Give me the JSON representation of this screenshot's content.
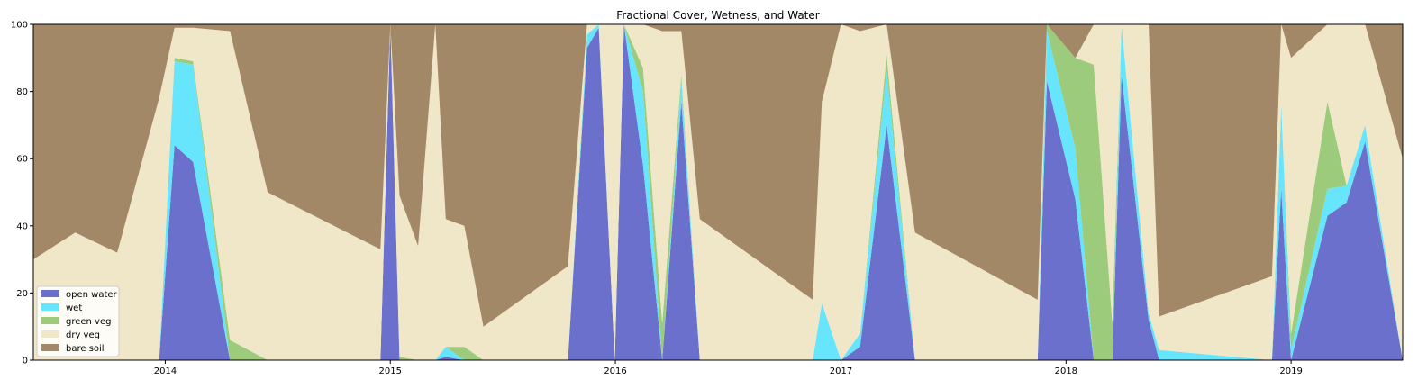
{
  "chart_data": {
    "type": "area",
    "stacked": true,
    "title": "Fractional Cover, Wetness, and Water",
    "xlabel": "",
    "ylabel": "",
    "xlim": [
      "2013-06-01",
      "2019-07-01"
    ],
    "ylim": [
      0,
      100
    ],
    "x_ticks": [
      "2014",
      "2015",
      "2016",
      "2017",
      "2018",
      "2019"
    ],
    "y_ticks": [
      "0",
      "20",
      "40",
      "60",
      "80",
      "100"
    ],
    "legend_position": "lower-left",
    "grid": false,
    "x": [
      "2013-06-01",
      "2013-08-08",
      "2013-10-15",
      "2013-12-22",
      "2014-01-16",
      "2014-02-15",
      "2014-04-16",
      "2014-06-16",
      "2014-12-16",
      "2015-01-01",
      "2015-01-16",
      "2015-02-15",
      "2015-03-15",
      "2015-04-01",
      "2015-05-01",
      "2015-06-01",
      "2015-10-16",
      "2015-11-16",
      "2015-12-05",
      "2015-12-31",
      "2016-01-15",
      "2016-02-15",
      "2016-03-17",
      "2016-04-17",
      "2016-05-17",
      "2016-11-16",
      "2016-12-01",
      "2017-01-01",
      "2017-02-01",
      "2017-03-16",
      "2017-05-01",
      "2017-11-16",
      "2017-12-01",
      "2018-01-16",
      "2018-02-15",
      "2018-03-17",
      "2018-04-01",
      "2018-05-15",
      "2018-06-01",
      "2018-12-01",
      "2018-12-16",
      "2019-01-01",
      "2019-03-01",
      "2019-04-01",
      "2019-05-01",
      "2019-07-01"
    ],
    "series": [
      {
        "name": "open water",
        "color": "#6a70cb",
        "values": [
          0,
          0,
          0,
          0,
          64,
          59,
          0,
          0,
          0,
          100,
          0,
          0,
          0,
          1,
          0,
          0,
          0,
          93,
          99,
          0,
          100,
          58,
          0,
          77,
          0,
          0,
          0,
          0,
          4,
          70,
          0,
          0,
          83,
          48,
          0,
          0,
          85,
          12,
          0,
          0,
          51,
          0,
          43,
          47,
          65,
          0
        ]
      },
      {
        "name": "wet",
        "color": "#67e5fc",
        "values": [
          0,
          0,
          0,
          0,
          25,
          29,
          0,
          0,
          0,
          0,
          0,
          0,
          0,
          3,
          0,
          0,
          0,
          4,
          1,
          0,
          0,
          22,
          0,
          6,
          0,
          0,
          17,
          0,
          4,
          16,
          0,
          0,
          15,
          15,
          0,
          0,
          15,
          2,
          3,
          0,
          25,
          3,
          8,
          5,
          5,
          0
        ]
      },
      {
        "name": "green veg",
        "color": "#9ccb7b",
        "values": [
          0,
          0,
          0,
          0,
          1,
          1,
          6,
          0,
          0,
          0,
          1,
          0,
          0,
          0,
          4,
          0,
          0,
          0,
          0,
          0,
          0,
          7,
          11,
          2,
          0,
          0,
          0,
          0,
          0,
          5,
          0,
          0,
          2,
          27,
          88,
          11,
          0,
          0,
          0,
          0,
          0,
          5,
          26,
          0,
          0,
          0
        ]
      },
      {
        "name": "dry veg",
        "color": "#f0e6c8",
        "values": [
          30,
          38,
          32,
          78,
          9,
          10,
          92,
          50,
          33,
          0,
          48,
          34,
          100,
          38,
          36,
          10,
          28,
          3,
          0,
          100,
          0,
          13,
          87,
          13,
          42,
          18,
          60,
          100,
          90,
          9,
          38,
          18,
          0,
          0,
          12,
          89,
          0,
          86,
          10,
          25,
          24,
          82,
          23,
          48,
          30,
          60
        ]
      },
      {
        "name": "bare soil",
        "color": "#a38867",
        "values": [
          70,
          62,
          68,
          22,
          1,
          1,
          2,
          50,
          67,
          0,
          51,
          66,
          0,
          58,
          60,
          90,
          72,
          0,
          0,
          0,
          0,
          0,
          2,
          2,
          58,
          82,
          23,
          0,
          2,
          0,
          62,
          82,
          0,
          10,
          0,
          0,
          0,
          0,
          87,
          75,
          0,
          10,
          0,
          0,
          0,
          40
        ]
      }
    ]
  }
}
